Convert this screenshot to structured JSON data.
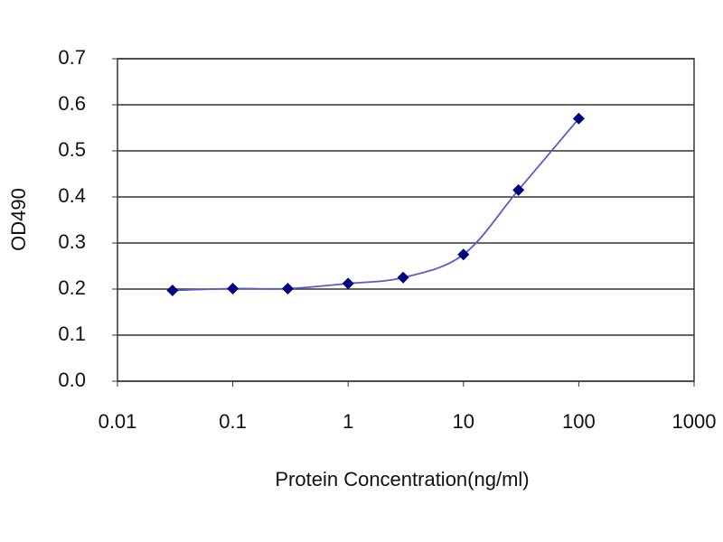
{
  "chart_data": {
    "type": "line",
    "x_label": "Protein Concentration(ng/ml)",
    "y_label": "OD490",
    "xscale": "log",
    "xlim": [
      0.01,
      1000
    ],
    "xticks": [
      0.01,
      0.1,
      1,
      10,
      100,
      1000
    ],
    "ylim": [
      0,
      0.7
    ],
    "yticks": [
      {
        "value": 0,
        "label": "0.0"
      },
      0.1,
      0.2,
      0.3,
      0.4,
      0.5,
      0.6,
      0.7
    ],
    "grid": true,
    "x": [
      0.03,
      0.1,
      0.3,
      1,
      3,
      10,
      30,
      100
    ],
    "series": [
      {
        "color": "#000080",
        "line_color": "#5a5ac8",
        "values": [
          0.197,
          0.201,
          0.201,
          0.212,
          0.225,
          0.275,
          0.415,
          0.57
        ]
      }
    ]
  }
}
